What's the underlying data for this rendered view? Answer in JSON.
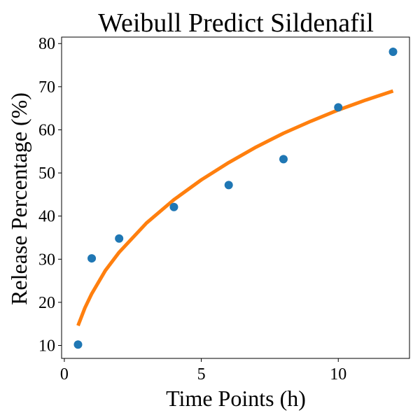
{
  "chart_data": {
    "type": "scatter",
    "title": "Weibull Predict Sildenafil",
    "xlabel": "Time Points (h)",
    "ylabel": "Release Percentage (%)",
    "xlim": [
      -0.1,
      12.6
    ],
    "ylim": [
      7,
      81.5
    ],
    "xticks": [
      0,
      5,
      10
    ],
    "yticks": [
      10,
      20,
      30,
      40,
      50,
      60,
      70,
      80
    ],
    "grid": false,
    "series": [
      {
        "type": "scatter",
        "color": "#1f77b4",
        "x": [
          0.5,
          1,
          2,
          4,
          6,
          8,
          10,
          12
        ],
        "y": [
          10.2,
          30.2,
          34.8,
          42.1,
          47.2,
          53.2,
          65.2,
          78.1
        ]
      },
      {
        "type": "line",
        "color": "#ff7f0e",
        "x": [
          0.5,
          0.75,
          1,
          1.5,
          2,
          3,
          4,
          5,
          6,
          7,
          8,
          9,
          10,
          11,
          12
        ],
        "y": [
          14.6,
          18.7,
          22.0,
          27.4,
          31.6,
          38.4,
          43.8,
          48.4,
          52.4,
          56.0,
          59.2,
          62.0,
          64.6,
          66.9,
          69.0
        ]
      }
    ]
  }
}
